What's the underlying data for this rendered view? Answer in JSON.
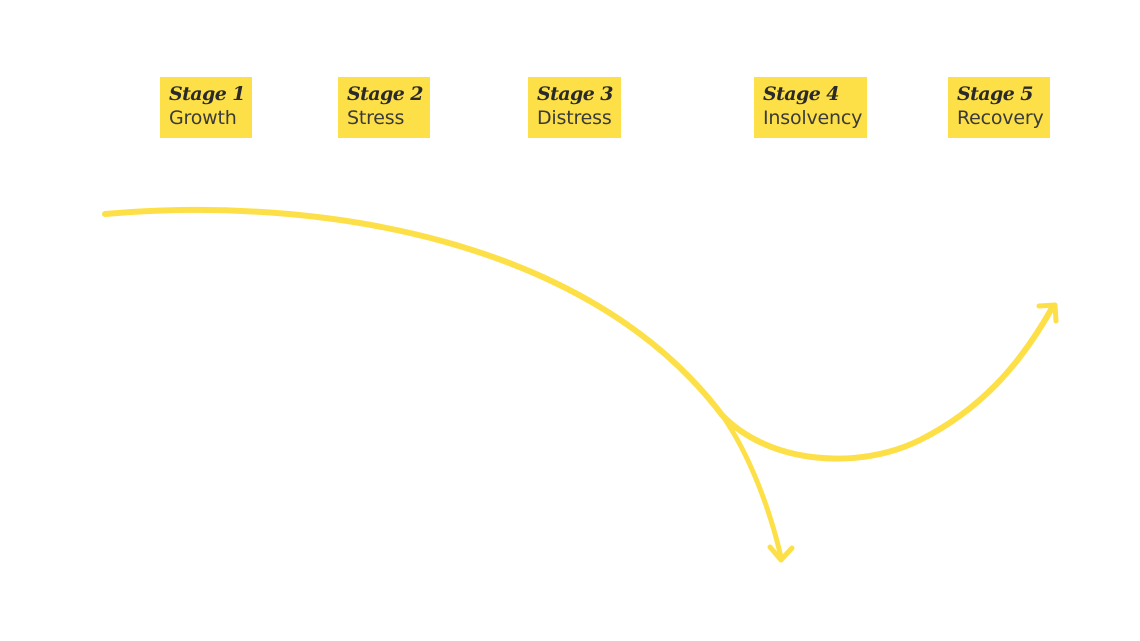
{
  "stages": [
    {
      "title": "Stage 1",
      "name": "Growth"
    },
    {
      "title": "Stage 2",
      "name": "Stress"
    },
    {
      "title": "Stage 3",
      "name": "Distress"
    },
    {
      "title": "Stage 4",
      "name": "Insolvency"
    },
    {
      "title": "Stage 5",
      "name": "Recovery"
    }
  ],
  "colors": {
    "card_background": "#fde047",
    "curve": "#fde047",
    "text": "#2a2a2a"
  }
}
